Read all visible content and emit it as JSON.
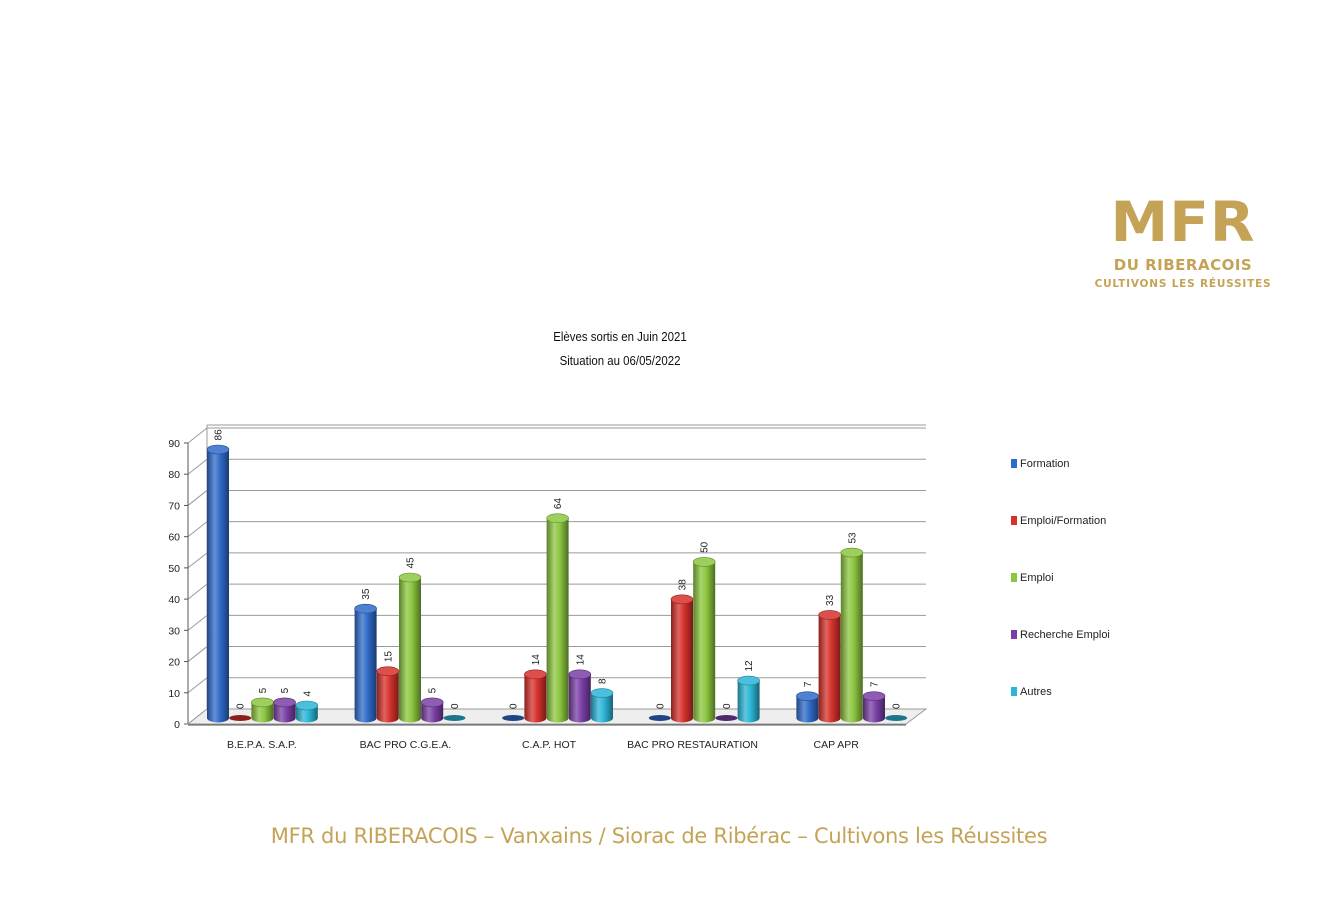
{
  "logo": {
    "mark": "MFR",
    "name": "DU RIBERACOIS",
    "tagline": "CULTIVONS LES RÉUSSITES",
    "color": "#c4a357"
  },
  "chart_data": {
    "type": "bar",
    "title": "Elèves sortis en Juin 2021",
    "subtitle": "Situation au 06/05/2022",
    "categories": [
      "B.E.P.A. S.A.P.",
      "BAC PRO C.G.E.A.",
      "C.A.P. HOT",
      "BAC PRO RESTAURATION",
      "CAP APR"
    ],
    "series": [
      {
        "name": "Formation",
        "color": "#2f6bc9",
        "values": [
          86,
          35,
          0,
          0,
          7
        ]
      },
      {
        "name": "Emploi/Formation",
        "color": "#d6312b",
        "values": [
          0,
          15,
          14,
          38,
          33
        ]
      },
      {
        "name": "Emploi",
        "color": "#8cc63f",
        "values": [
          5,
          45,
          64,
          50,
          53
        ]
      },
      {
        "name": "Recherche Emploi",
        "color": "#7a3fa6",
        "values": [
          5,
          5,
          14,
          0,
          7
        ]
      },
      {
        "name": "Autres",
        "color": "#2bb5d6",
        "values": [
          4,
          0,
          8,
          12,
          0
        ]
      }
    ],
    "yticks": [
      0,
      10,
      20,
      30,
      40,
      50,
      60,
      70,
      80,
      90
    ],
    "ylim": [
      0,
      90
    ],
    "grid": true,
    "legend_position": "right"
  },
  "footer": {
    "text": "MFR du RIBERACOIS – Vanxains / Siorac de Ribérac – Cultivons les Réussites"
  }
}
